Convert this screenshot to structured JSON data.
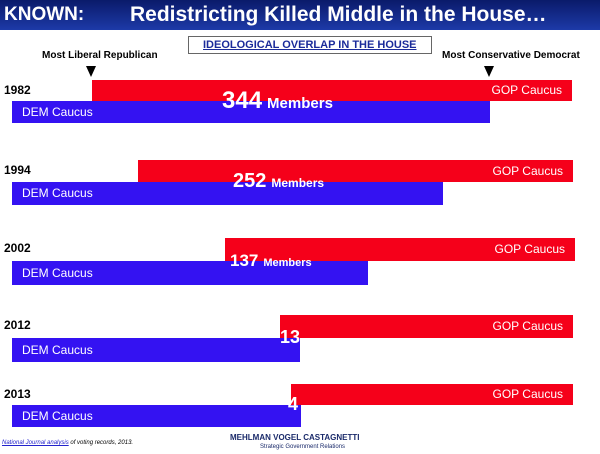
{
  "header": {
    "tag": "KNOWN:",
    "title": "Redistricting Killed Middle in the House…"
  },
  "subtitle": "IDEOLOGICAL OVERLAP IN THE HOUSE",
  "markers": {
    "left": "Most Liberal Republican",
    "right": "Most Conservative Democrat"
  },
  "rows": [
    {
      "year": "1982",
      "gop": "GOP Caucus",
      "dem": "DEM Caucus",
      "overlap": 344,
      "unit": "Members"
    },
    {
      "year": "1994",
      "gop": "GOP Caucus",
      "dem": "DEM Caucus",
      "overlap": 252,
      "unit": "Members"
    },
    {
      "year": "2002",
      "gop": "GOP Caucus",
      "dem": "DEM Caucus",
      "overlap": 137,
      "unit": "Members"
    },
    {
      "year": "2012",
      "gop": "GOP Caucus",
      "dem": "DEM Caucus",
      "overlap": 13
    },
    {
      "year": "2013",
      "gop": "GOP Caucus",
      "dem": "DEM Caucus",
      "overlap": 4
    }
  ],
  "footer": {
    "source_link": "National Journal analysis",
    "source_rest": " of voting records, 2013.",
    "logo": "MEHLMAN VOGEL CASTAGNETTI",
    "logo_sub": "Strategic Government Relations"
  }
}
